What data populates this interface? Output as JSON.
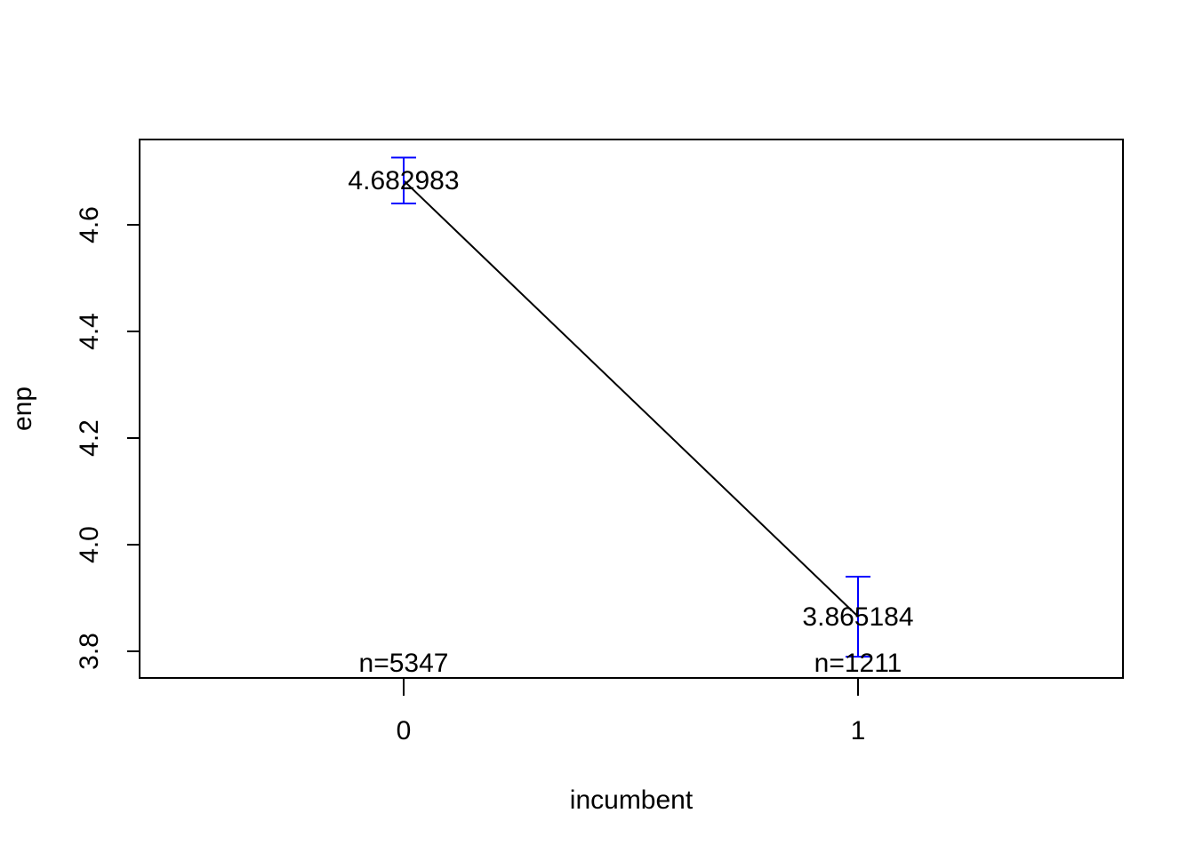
{
  "chart_data": {
    "type": "line",
    "title": "",
    "xlabel": "incumbent",
    "ylabel": "enp",
    "categories": [
      "0",
      "1"
    ],
    "values": [
      4.682983,
      3.865184
    ],
    "value_labels": [
      "4.682983",
      "3.865184"
    ],
    "error_bars": [
      {
        "low": 4.64,
        "high": 4.726
      },
      {
        "low": 3.79,
        "high": 3.94
      }
    ],
    "counts": [
      "n=5347",
      "n=1211"
    ],
    "yticks": [
      "3.8",
      "4.0",
      "4.2",
      "4.4",
      "4.6"
    ],
    "ylim": [
      3.75,
      4.76
    ],
    "grid": false,
    "line_color": "#000000",
    "error_bar_color": "#0000ff"
  }
}
